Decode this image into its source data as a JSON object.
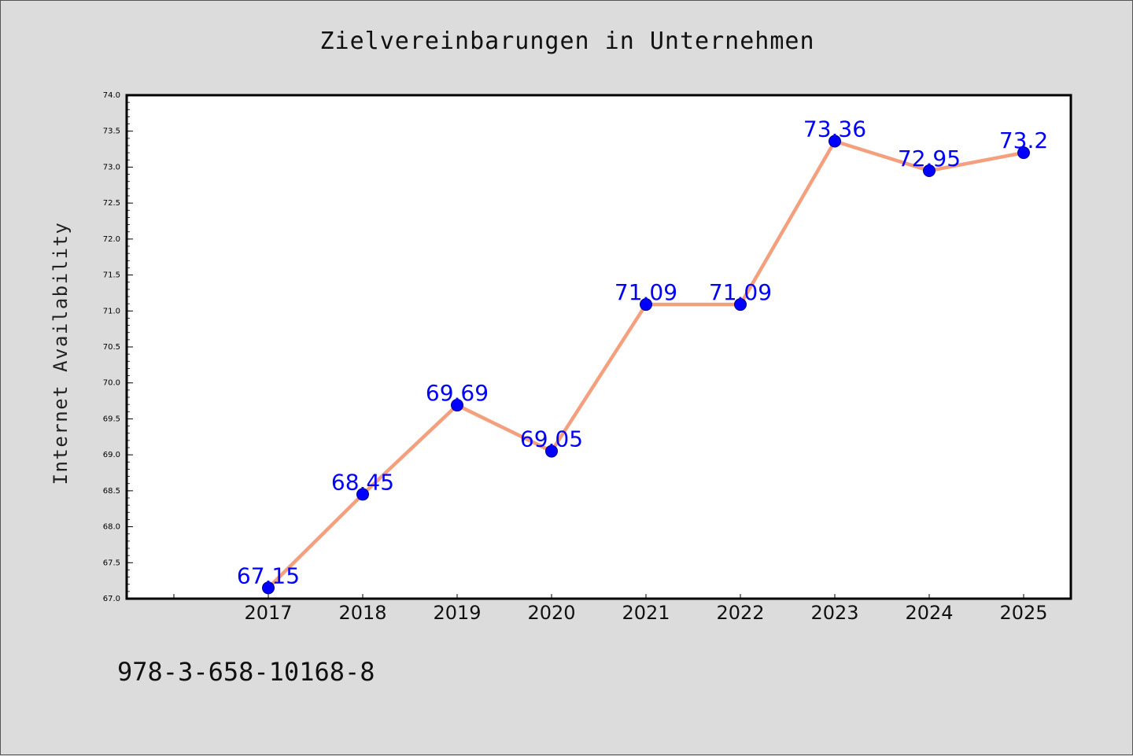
{
  "chart_data": {
    "type": "line",
    "title": "Zielvereinbarungen in Unternehmen",
    "xlabel": "",
    "ylabel": "Internet Availability",
    "categories": [
      "2017",
      "2018",
      "2019",
      "2020",
      "2021",
      "2022",
      "2023",
      "2024",
      "2025"
    ],
    "series": [
      {
        "values": [
          67.15,
          68.45,
          69.69,
          69.05,
          71.09,
          71.09,
          73.36,
          72.95,
          73.2
        ],
        "data_labels": [
          "67.15",
          "68.45",
          "69.69",
          "69.05",
          "71.09",
          "71.09",
          "73.36",
          "72.95",
          "73.2"
        ]
      }
    ],
    "ylim": [
      67.0,
      74.0
    ],
    "yticks": [
      "67.0",
      "67.5",
      "68.0",
      "68.5",
      "69.0",
      "69.5",
      "70.0",
      "70.5",
      "71.0",
      "71.5",
      "72.0",
      "72.5",
      "73.0",
      "73.5",
      "74.0"
    ],
    "grid": false,
    "colors": {
      "line": "#f4a07e",
      "marker": "#0000ff",
      "label": "#0000ff",
      "background": "#dcdcdc",
      "plot_area": "#ffffff"
    }
  },
  "footer": {
    "code": "978-3-658-10168-8"
  }
}
